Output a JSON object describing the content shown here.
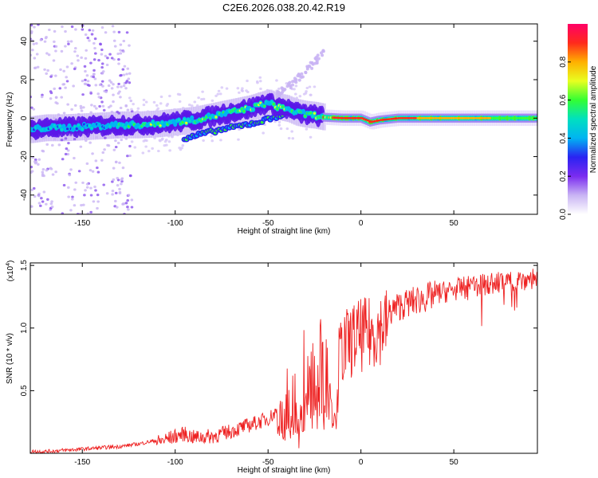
{
  "figure": {
    "title": "C2E6.2026.038.20.42.R19"
  },
  "chart_data": [
    {
      "type": "heatmap",
      "title": "",
      "xlabel": "Height of straight line (km)",
      "ylabel": "Frequency (Hz)",
      "xlim": [
        -178,
        95
      ],
      "ylim": [
        -50,
        49
      ],
      "xticks": [
        -150,
        -100,
        -50,
        0,
        50
      ],
      "yticks": [
        -40,
        -20,
        0,
        20,
        40
      ],
      "colorbar": {
        "label": "Normalized spectral amplitude",
        "range": [
          0,
          1
        ],
        "ticks": [
          0.0,
          0.2,
          0.4,
          0.6,
          0.8
        ],
        "tick_labels": [
          "0.0",
          "0.2",
          "0.4",
          "0.6",
          "0.8"
        ],
        "colors": [
          "#ffffff",
          "#c9b4f4",
          "#7b2cf0",
          "#2a23f2",
          "#00b4f2",
          "#00e0c0",
          "#33ff33",
          "#e8ff20",
          "#ffb000",
          "#ff2a1c",
          "#ff0066"
        ]
      },
      "ridge": {
        "description": "main energy ridge (frequency in Hz vs height in km)",
        "x": [
          -178,
          -170,
          -160,
          -150,
          -140,
          -130,
          -120,
          -110,
          -100,
          -90,
          -80,
          -70,
          -60,
          -50,
          -45,
          -40,
          -35,
          -30,
          -25,
          -20,
          -10,
          0,
          5,
          10,
          20,
          40,
          60,
          80,
          95
        ],
        "y": [
          -6,
          -5,
          -5,
          -4.5,
          -4,
          -3.5,
          -3.5,
          -3,
          -2,
          -1,
          1,
          3,
          5,
          8,
          6,
          5,
          3,
          2,
          1.5,
          0.5,
          0,
          0,
          -2,
          -1,
          0,
          0,
          0,
          0,
          0
        ]
      },
      "secondary_ridge": {
        "description": "lower branch",
        "x": [
          -95,
          -85,
          -75,
          -65,
          -55,
          -45,
          -35
        ],
        "y": [
          -11,
          -8,
          -6,
          -4,
          -2,
          1,
          4
        ]
      },
      "scatter_tail": {
        "description": "rising faint branch",
        "x": [
          -45,
          -40,
          -35,
          -30,
          -25,
          -20
        ],
        "y": [
          12,
          16,
          20,
          24,
          29,
          34
        ]
      }
    },
    {
      "type": "line",
      "title": "",
      "xlabel": "Height of straight line (km)",
      "ylabel": "SNR (10 * v/v)",
      "y_multiplier_label": "(x10",
      "y_multiplier_exp": "4",
      "y_multiplier_close": ")",
      "xlim": [
        -178,
        95
      ],
      "ylim": [
        0,
        1.52
      ],
      "xticks": [
        -150,
        -100,
        -50,
        0,
        50
      ],
      "yticks": [
        0.5,
        1.0,
        1.5
      ],
      "ytick_labels": [
        "0.5",
        "1.0",
        "1.5"
      ],
      "line_color": "#ee2222",
      "series": [
        {
          "name": "SNR",
          "x": [
            -178,
            -170,
            -160,
            -150,
            -140,
            -130,
            -120,
            -110,
            -100,
            -95,
            -90,
            -80,
            -70,
            -60,
            -50,
            -45,
            -40,
            -35,
            -30,
            -25,
            -20,
            -15,
            -10,
            -5,
            0,
            5,
            10,
            15,
            20,
            30,
            40,
            50,
            60,
            70,
            80,
            90,
            95
          ],
          "values": [
            0.02,
            0.02,
            0.03,
            0.04,
            0.05,
            0.06,
            0.08,
            0.11,
            0.16,
            0.18,
            0.15,
            0.16,
            0.2,
            0.25,
            0.3,
            0.36,
            0.46,
            0.6,
            0.82,
            0.93,
            0.9,
            0.8,
            0.95,
            1.02,
            1.06,
            1.07,
            1.12,
            1.17,
            1.22,
            1.27,
            1.31,
            1.34,
            1.37,
            1.39,
            1.41,
            1.43,
            1.44
          ]
        }
      ]
    }
  ]
}
